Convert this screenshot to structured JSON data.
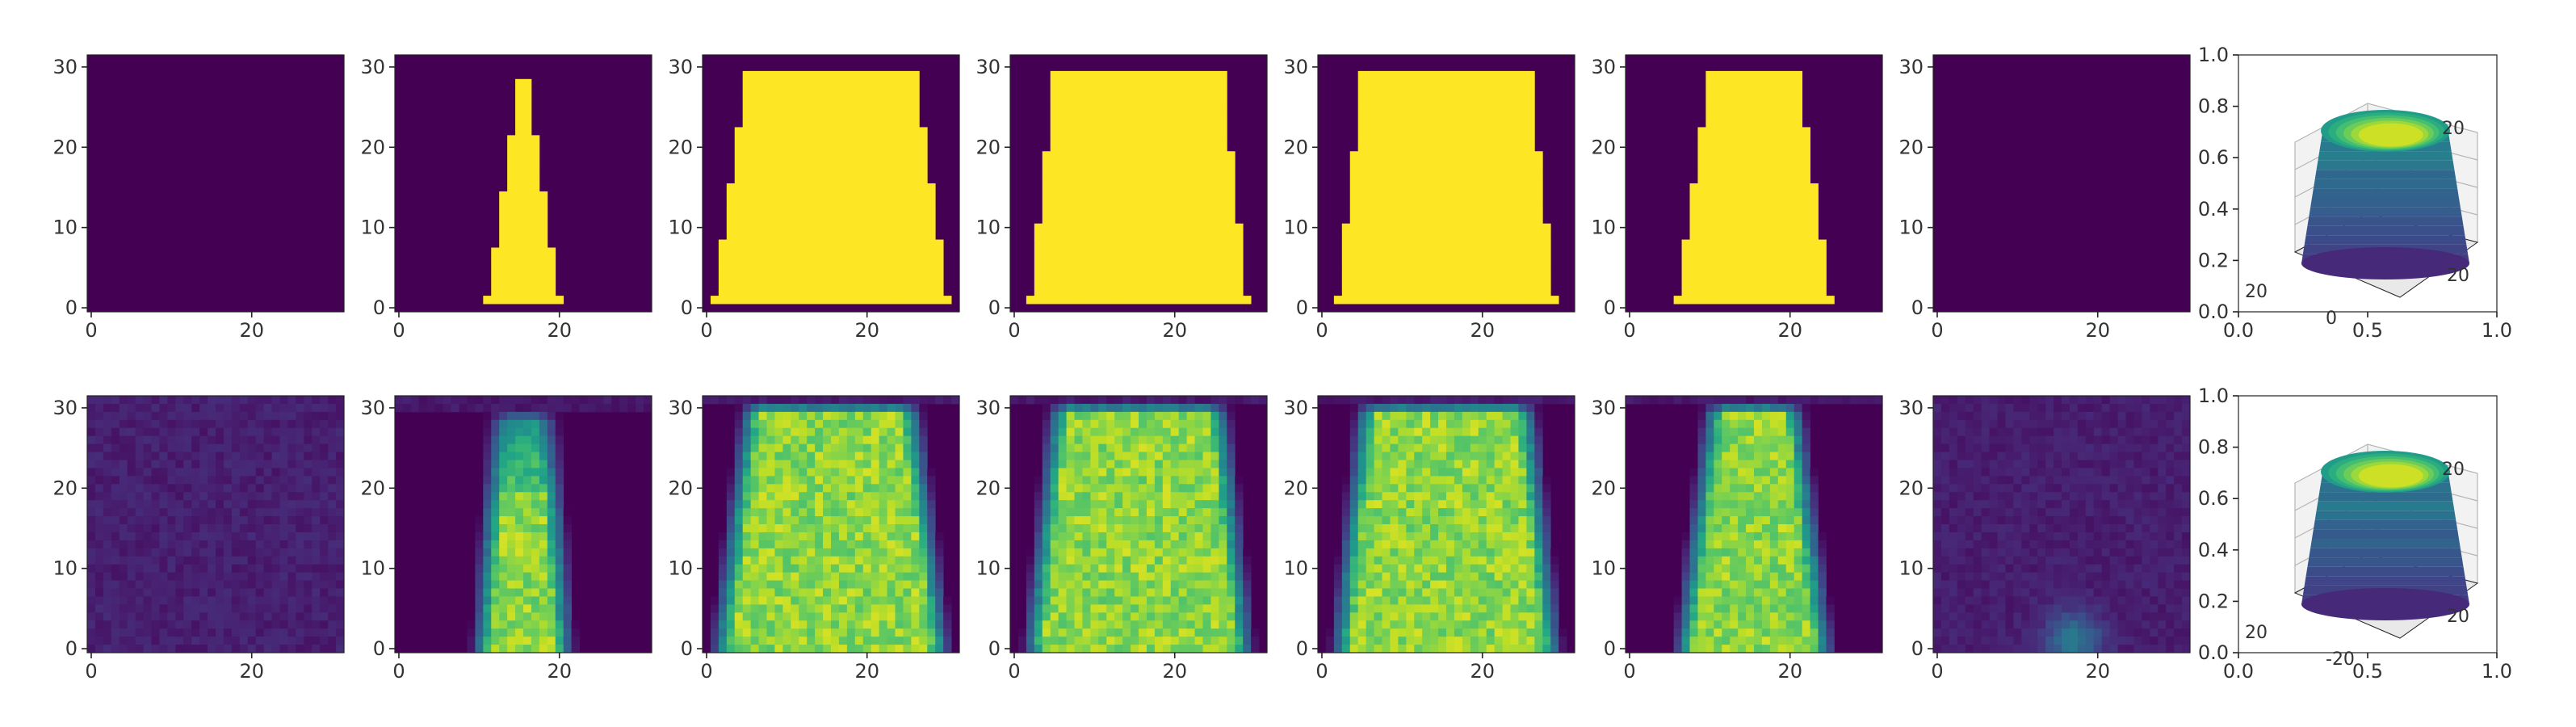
{
  "colors": {
    "background": "#440154",
    "viridis_low": "#440154",
    "viridis_mid": "#21918c",
    "viridis_high": "#fde725",
    "axis": "#222222",
    "tick_text": "#333333"
  },
  "chart_data": [
    {
      "type": "heatmap",
      "row": "top",
      "panel": 1,
      "colormap": "viridis",
      "grid_size": 32,
      "shape": "none",
      "x_ticks": [
        "0",
        "20"
      ],
      "y_ticks": [
        "0",
        "10",
        "20",
        "30"
      ],
      "xlim": [
        -0.5,
        31.5
      ],
      "ylim": [
        31.5,
        -0.5
      ]
    },
    {
      "type": "heatmap",
      "row": "top",
      "panel": 2,
      "colormap": "viridis",
      "grid_size": 32,
      "shape": "binary_trapezoid",
      "top_row": 3,
      "top_half_width": 0.5,
      "bottom_row": 30,
      "bottom_half_width": 4.5,
      "center_col": 15.5,
      "x_ticks": [
        "0",
        "20"
      ],
      "y_ticks": [
        "0",
        "10",
        "20",
        "30"
      ],
      "xlim": [
        -0.5,
        31.5
      ],
      "ylim": [
        31.5,
        -0.5
      ]
    },
    {
      "type": "heatmap",
      "row": "top",
      "panel": 3,
      "colormap": "viridis",
      "grid_size": 32,
      "shape": "binary_trapezoid",
      "top_row": 2,
      "top_half_width": 10.5,
      "bottom_row": 30,
      "bottom_half_width": 14.5,
      "center_col": 15.5,
      "x_ticks": [
        "0",
        "20"
      ],
      "y_ticks": [
        "0",
        "10",
        "20",
        "30"
      ],
      "xlim": [
        -0.5,
        31.5
      ],
      "ylim": [
        31.5,
        -0.5
      ]
    },
    {
      "type": "heatmap",
      "row": "top",
      "panel": 4,
      "colormap": "viridis",
      "grid_size": 32,
      "shape": "binary_trapezoid",
      "top_row": 2,
      "top_half_width": 10.5,
      "bottom_row": 30,
      "bottom_half_width": 13.5,
      "center_col": 15.5,
      "x_ticks": [
        "0",
        "20"
      ],
      "y_ticks": [
        "0",
        "10",
        "20",
        "30"
      ],
      "xlim": [
        -0.5,
        31.5
      ],
      "ylim": [
        31.5,
        -0.5
      ]
    },
    {
      "type": "heatmap",
      "row": "top",
      "panel": 5,
      "colormap": "viridis",
      "grid_size": 32,
      "shape": "binary_trapezoid",
      "top_row": 2,
      "top_half_width": 10.5,
      "bottom_row": 30,
      "bottom_half_width": 13.5,
      "center_col": 15.5,
      "x_ticks": [
        "0",
        "20"
      ],
      "y_ticks": [
        "0",
        "10",
        "20",
        "30"
      ],
      "xlim": [
        -0.5,
        31.5
      ],
      "ylim": [
        31.5,
        -0.5
      ]
    },
    {
      "type": "heatmap",
      "row": "top",
      "panel": 6,
      "colormap": "viridis",
      "grid_size": 32,
      "shape": "binary_trapezoid",
      "top_row": 2,
      "top_half_width": 5.5,
      "bottom_row": 30,
      "bottom_half_width": 9.5,
      "center_col": 15.5,
      "x_ticks": [
        "0",
        "20"
      ],
      "y_ticks": [
        "0",
        "10",
        "20",
        "30"
      ],
      "xlim": [
        -0.5,
        31.5
      ],
      "ylim": [
        31.5,
        -0.5
      ]
    },
    {
      "type": "heatmap",
      "row": "top",
      "panel": 7,
      "colormap": "viridis",
      "grid_size": 32,
      "shape": "none",
      "x_ticks": [
        "0",
        "20"
      ],
      "y_ticks": [
        "0",
        "10",
        "20",
        "30"
      ],
      "xlim": [
        -0.5,
        31.5
      ],
      "ylim": [
        31.5,
        -0.5
      ]
    },
    {
      "type": "surface3d",
      "row": "top",
      "panel": 8,
      "colormap": "viridis",
      "x_ticks": [
        "0.0",
        "0.5",
        "1.0"
      ],
      "y_ticks": [
        "0.0",
        "0.2",
        "0.4",
        "0.6",
        "0.8",
        "1.0"
      ],
      "xlim": [
        0,
        1
      ],
      "ylim": [
        0,
        1
      ],
      "axis3d_labels": [
        "20",
        "20",
        "0",
        "20"
      ]
    },
    {
      "type": "heatmap",
      "row": "bottom",
      "panel": 1,
      "colormap": "viridis",
      "grid_size": 32,
      "shape": "none",
      "blur": true,
      "x_ticks": [
        "0",
        "20"
      ],
      "y_ticks": [
        "0",
        "10",
        "20",
        "30"
      ],
      "xlim": [
        -0.5,
        31.5
      ],
      "ylim": [
        31.5,
        -0.5
      ]
    },
    {
      "type": "heatmap",
      "row": "bottom",
      "panel": 2,
      "colormap": "viridis",
      "grid_size": 32,
      "shape": "soft_trapezoid",
      "top_row": 3,
      "top_half_width": 3.5,
      "bottom_row": 30,
      "bottom_half_width": 5.5,
      "center_col": 15.5,
      "x_ticks": [
        "0",
        "20"
      ],
      "y_ticks": [
        "0",
        "10",
        "20",
        "30"
      ],
      "xlim": [
        -0.5,
        31.5
      ],
      "ylim": [
        31.5,
        -0.5
      ]
    },
    {
      "type": "heatmap",
      "row": "bottom",
      "panel": 3,
      "colormap": "viridis",
      "grid_size": 32,
      "shape": "soft_trapezoid",
      "top_row": 2,
      "top_half_width": 10.5,
      "bottom_row": 30,
      "bottom_half_width": 14.0,
      "center_col": 15.5,
      "x_ticks": [
        "0",
        "20"
      ],
      "y_ticks": [
        "0",
        "10",
        "20",
        "30"
      ],
      "xlim": [
        -0.5,
        31.5
      ],
      "ylim": [
        31.5,
        -0.5
      ]
    },
    {
      "type": "heatmap",
      "row": "bottom",
      "panel": 4,
      "colormap": "viridis",
      "grid_size": 32,
      "shape": "soft_trapezoid",
      "top_row": 2,
      "top_half_width": 10.5,
      "bottom_row": 30,
      "bottom_half_width": 13.5,
      "center_col": 15.5,
      "x_ticks": [
        "0",
        "20"
      ],
      "y_ticks": [
        "0",
        "10",
        "20",
        "30"
      ],
      "xlim": [
        -0.5,
        31.5
      ],
      "ylim": [
        31.5,
        -0.5
      ]
    },
    {
      "type": "heatmap",
      "row": "bottom",
      "panel": 5,
      "colormap": "viridis",
      "grid_size": 32,
      "shape": "soft_trapezoid",
      "top_row": 2,
      "top_half_width": 10.5,
      "bottom_row": 30,
      "bottom_half_width": 13.5,
      "center_col": 15.5,
      "x_ticks": [
        "0",
        "20"
      ],
      "y_ticks": [
        "0",
        "10",
        "20",
        "30"
      ],
      "xlim": [
        -0.5,
        31.5
      ],
      "ylim": [
        31.5,
        -0.5
      ]
    },
    {
      "type": "heatmap",
      "row": "bottom",
      "panel": 6,
      "colormap": "viridis",
      "grid_size": 32,
      "shape": "soft_trapezoid",
      "top_row": 2,
      "top_half_width": 5.5,
      "bottom_row": 30,
      "bottom_half_width": 9.0,
      "center_col": 15.5,
      "x_ticks": [
        "0",
        "20"
      ],
      "y_ticks": [
        "0",
        "10",
        "20",
        "30"
      ],
      "xlim": [
        -0.5,
        31.5
      ],
      "ylim": [
        31.5,
        -0.5
      ]
    },
    {
      "type": "heatmap",
      "row": "bottom",
      "panel": 7,
      "colormap": "viridis",
      "grid_size": 32,
      "shape": "faint_blob",
      "blob_center_row": 30,
      "blob_center_col": 17,
      "x_ticks": [
        "0",
        "20"
      ],
      "y_ticks": [
        "0",
        "10",
        "20",
        "30"
      ],
      "xlim": [
        -0.5,
        31.5
      ],
      "ylim": [
        31.5,
        -0.5
      ]
    },
    {
      "type": "surface3d",
      "row": "bottom",
      "panel": 8,
      "colormap": "viridis",
      "x_ticks": [
        "0.0",
        "0.5",
        "1.0"
      ],
      "y_ticks": [
        "0.0",
        "0.2",
        "0.4",
        "0.6",
        "0.8",
        "1.0"
      ],
      "xlim": [
        0,
        1
      ],
      "ylim": [
        0,
        1
      ],
      "axis3d_labels": [
        "20",
        "20",
        "-20",
        "20"
      ]
    }
  ]
}
